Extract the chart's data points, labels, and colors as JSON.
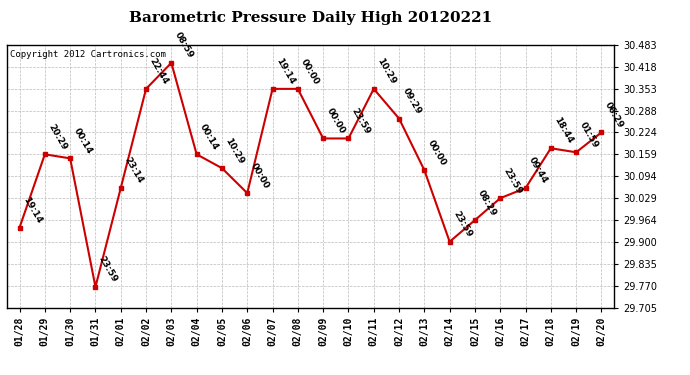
{
  "title": "Barometric Pressure Daily High 20120221",
  "copyright": "Copyright 2012 Cartronics.com",
  "x_labels": [
    "01/28",
    "01/29",
    "01/30",
    "01/31",
    "02/01",
    "02/02",
    "02/03",
    "02/04",
    "02/05",
    "02/06",
    "02/07",
    "02/08",
    "02/09",
    "02/10",
    "02/11",
    "02/12",
    "02/13",
    "02/14",
    "02/15",
    "02/16",
    "02/17",
    "02/18",
    "02/19",
    "02/20"
  ],
  "y_values": [
    29.942,
    30.159,
    30.147,
    29.766,
    30.059,
    30.353,
    30.43,
    30.159,
    30.118,
    30.044,
    30.353,
    30.353,
    30.206,
    30.206,
    30.353,
    30.265,
    30.112,
    29.9,
    29.964,
    30.029,
    30.059,
    30.177,
    30.165,
    30.224
  ],
  "time_labels": [
    "19:14",
    "20:29",
    "00:14",
    "23:59",
    "23:14",
    "22:44",
    "08:59",
    "00:14",
    "10:29",
    "00:00",
    "19:14",
    "00:00",
    "00:00",
    "23:59",
    "10:29",
    "09:29",
    "00:00",
    "23:59",
    "08:29",
    "23:59",
    "09:44",
    "18:44",
    "01:59",
    "06:29"
  ],
  "y_min": 29.705,
  "y_max": 30.483,
  "y_ticks": [
    29.705,
    29.77,
    29.835,
    29.9,
    29.964,
    30.029,
    30.094,
    30.159,
    30.224,
    30.288,
    30.353,
    30.418,
    30.483
  ],
  "line_color": "#cc0000",
  "marker_color": "#cc0000",
  "bg_color": "#ffffff",
  "grid_color": "#bbbbbb",
  "title_fontsize": 11,
  "tick_fontsize": 7,
  "annotation_fontsize": 6.5
}
